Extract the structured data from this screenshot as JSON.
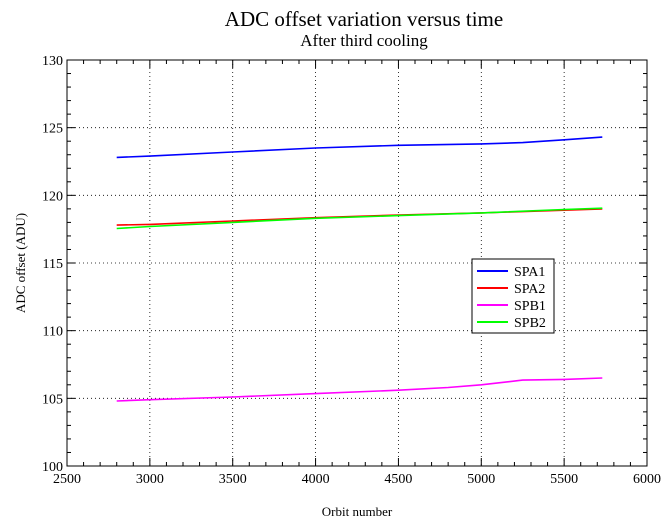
{
  "chart_data": {
    "type": "line",
    "title": "ADC offset variation versus time",
    "subtitle": "After third cooling",
    "xlabel": "Orbit number",
    "ylabel": "ADC offset (ADU)",
    "xlim": [
      2500,
      6000
    ],
    "ylim": [
      100,
      130
    ],
    "xticks": [
      2500,
      3000,
      3500,
      4000,
      4500,
      5000,
      5500,
      6000
    ],
    "yticks": [
      100,
      105,
      110,
      115,
      120,
      125,
      130
    ],
    "grid": true,
    "legend_position": "right",
    "series": [
      {
        "name": "SPA1",
        "color": "#0000ff",
        "x": [
          2800,
          3000,
          3500,
          4000,
          4500,
          5000,
          5250,
          5500,
          5730
        ],
        "y": [
          122.8,
          122.9,
          123.2,
          123.5,
          123.7,
          123.8,
          123.9,
          124.1,
          124.3
        ]
      },
      {
        "name": "SPA2",
        "color": "#ff0000",
        "x": [
          2800,
          3000,
          3500,
          4000,
          4500,
          5000,
          5500,
          5730
        ],
        "y": [
          117.8,
          117.85,
          118.1,
          118.35,
          118.55,
          118.7,
          118.9,
          119.0
        ]
      },
      {
        "name": "SPB1",
        "color": "#ff00ff",
        "x": [
          2800,
          3000,
          3500,
          4000,
          4500,
          4800,
          5000,
          5250,
          5500,
          5730
        ],
        "y": [
          104.8,
          104.9,
          105.1,
          105.35,
          105.6,
          105.8,
          106.0,
          106.35,
          106.4,
          106.5
        ]
      },
      {
        "name": "SPB2",
        "color": "#00ff00",
        "x": [
          2800,
          3000,
          3500,
          4000,
          4500,
          5000,
          5500,
          5730
        ],
        "y": [
          117.55,
          117.7,
          118.0,
          118.3,
          118.5,
          118.7,
          118.95,
          119.05
        ]
      }
    ]
  }
}
